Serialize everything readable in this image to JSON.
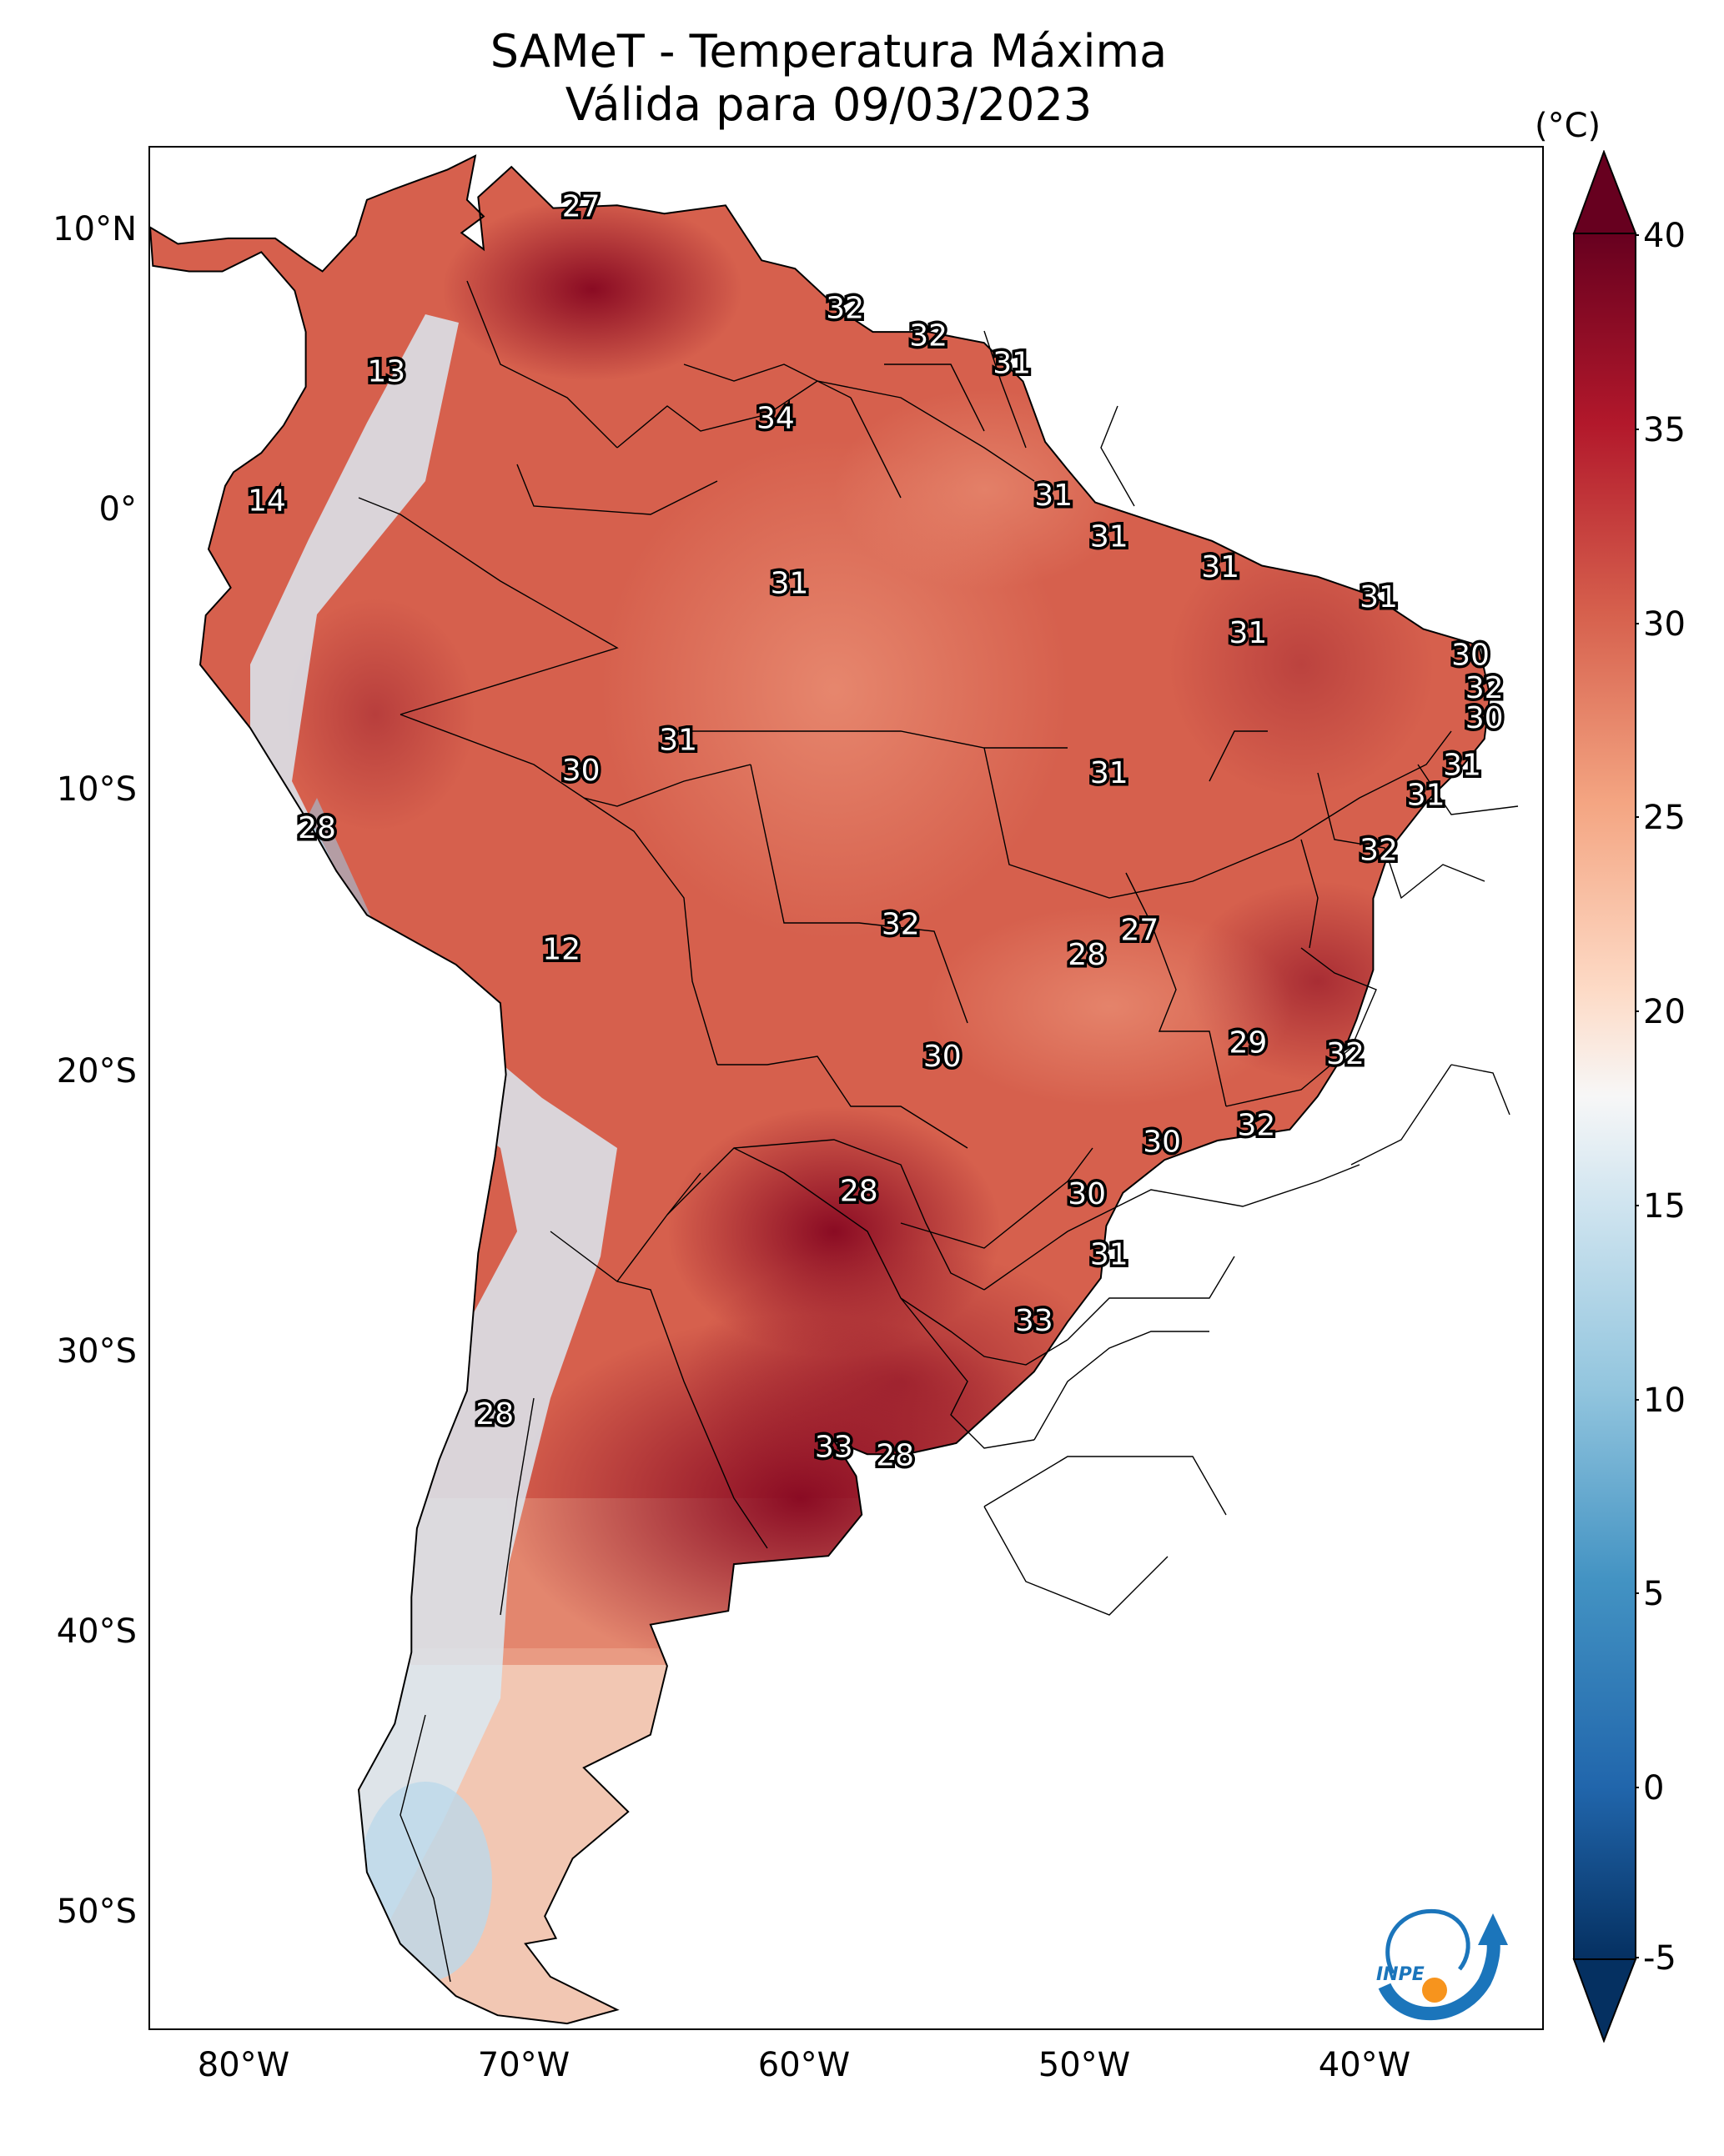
{
  "title": {
    "line1": "SAMeT - Temperatura Máxima",
    "line2": "Válida para 09/03/2023"
  },
  "axes": {
    "lat_labels": [
      "10°N",
      "0°",
      "10°S",
      "20°S",
      "30°S",
      "40°S",
      "50°S"
    ],
    "lon_labels": [
      "80°W",
      "70°W",
      "60°W",
      "50°W",
      "40°W"
    ]
  },
  "colorbar": {
    "unit": "(°C)",
    "ticks": [
      "40",
      "35",
      "30",
      "25",
      "20",
      "15",
      "10",
      "5",
      "0",
      "-5"
    ],
    "range": [
      -5,
      40
    ],
    "colors": [
      "#053061",
      "#2166ac",
      "#4393c3",
      "#92c5de",
      "#d1e5f0",
      "#f7f7f7",
      "#fddbc7",
      "#f4a582",
      "#d6604d",
      "#b2182b",
      "#67001f"
    ]
  },
  "station_labels": [
    {
      "value": "27",
      "lon": -67.5,
      "lat": 10.5
    },
    {
      "value": "13",
      "lon": -74.5,
      "lat": 4.5
    },
    {
      "value": "14",
      "lon": -78.8,
      "lat": -0.2
    },
    {
      "value": "32",
      "lon": -58.0,
      "lat": 6.8
    },
    {
      "value": "32",
      "lon": -55.0,
      "lat": 5.8
    },
    {
      "value": "31",
      "lon": -52.0,
      "lat": 4.8
    },
    {
      "value": "34",
      "lon": -60.5,
      "lat": 2.8
    },
    {
      "value": "31",
      "lon": -50.5,
      "lat": 0.0
    },
    {
      "value": "31",
      "lon": -60.0,
      "lat": -3.2
    },
    {
      "value": "31",
      "lon": -48.5,
      "lat": -1.5
    },
    {
      "value": "31",
      "lon": -44.5,
      "lat": -2.6
    },
    {
      "value": "31",
      "lon": -38.8,
      "lat": -3.7
    },
    {
      "value": "31",
      "lon": -43.5,
      "lat": -5.0
    },
    {
      "value": "30",
      "lon": -35.5,
      "lat": -5.8
    },
    {
      "value": "32",
      "lon": -35.0,
      "lat": -7.0
    },
    {
      "value": "30",
      "lon": -35.0,
      "lat": -8.1
    },
    {
      "value": "31",
      "lon": -64.0,
      "lat": -8.9
    },
    {
      "value": "30",
      "lon": -67.5,
      "lat": -10.0
    },
    {
      "value": "31",
      "lon": -48.5,
      "lat": -10.1
    },
    {
      "value": "31",
      "lon": -35.8,
      "lat": -9.8
    },
    {
      "value": "31",
      "lon": -37.1,
      "lat": -10.9
    },
    {
      "value": "28",
      "lon": -77.0,
      "lat": -12.1
    },
    {
      "value": "32",
      "lon": -38.8,
      "lat": -12.9
    },
    {
      "value": "32",
      "lon": -56.0,
      "lat": -15.6
    },
    {
      "value": "27",
      "lon": -47.4,
      "lat": -15.8
    },
    {
      "value": "28",
      "lon": -49.3,
      "lat": -16.7
    },
    {
      "value": "12",
      "lon": -68.2,
      "lat": -16.5
    },
    {
      "value": "29",
      "lon": -43.5,
      "lat": -19.9
    },
    {
      "value": "32",
      "lon": -40.0,
      "lat": -20.3
    },
    {
      "value": "30",
      "lon": -54.5,
      "lat": -20.4
    },
    {
      "value": "32",
      "lon": -43.2,
      "lat": -22.9
    },
    {
      "value": "30",
      "lon": -46.6,
      "lat": -23.5
    },
    {
      "value": "28",
      "lon": -57.5,
      "lat": -25.3
    },
    {
      "value": "30",
      "lon": -49.3,
      "lat": -25.4
    },
    {
      "value": "31",
      "lon": -48.5,
      "lat": -27.6
    },
    {
      "value": "33",
      "lon": -51.2,
      "lat": -30.0
    },
    {
      "value": "28",
      "lon": -70.6,
      "lat": -33.4
    },
    {
      "value": "33",
      "lon": -58.4,
      "lat": -34.6
    },
    {
      "value": "28",
      "lon": -56.2,
      "lat": -34.9
    }
  ]
}
